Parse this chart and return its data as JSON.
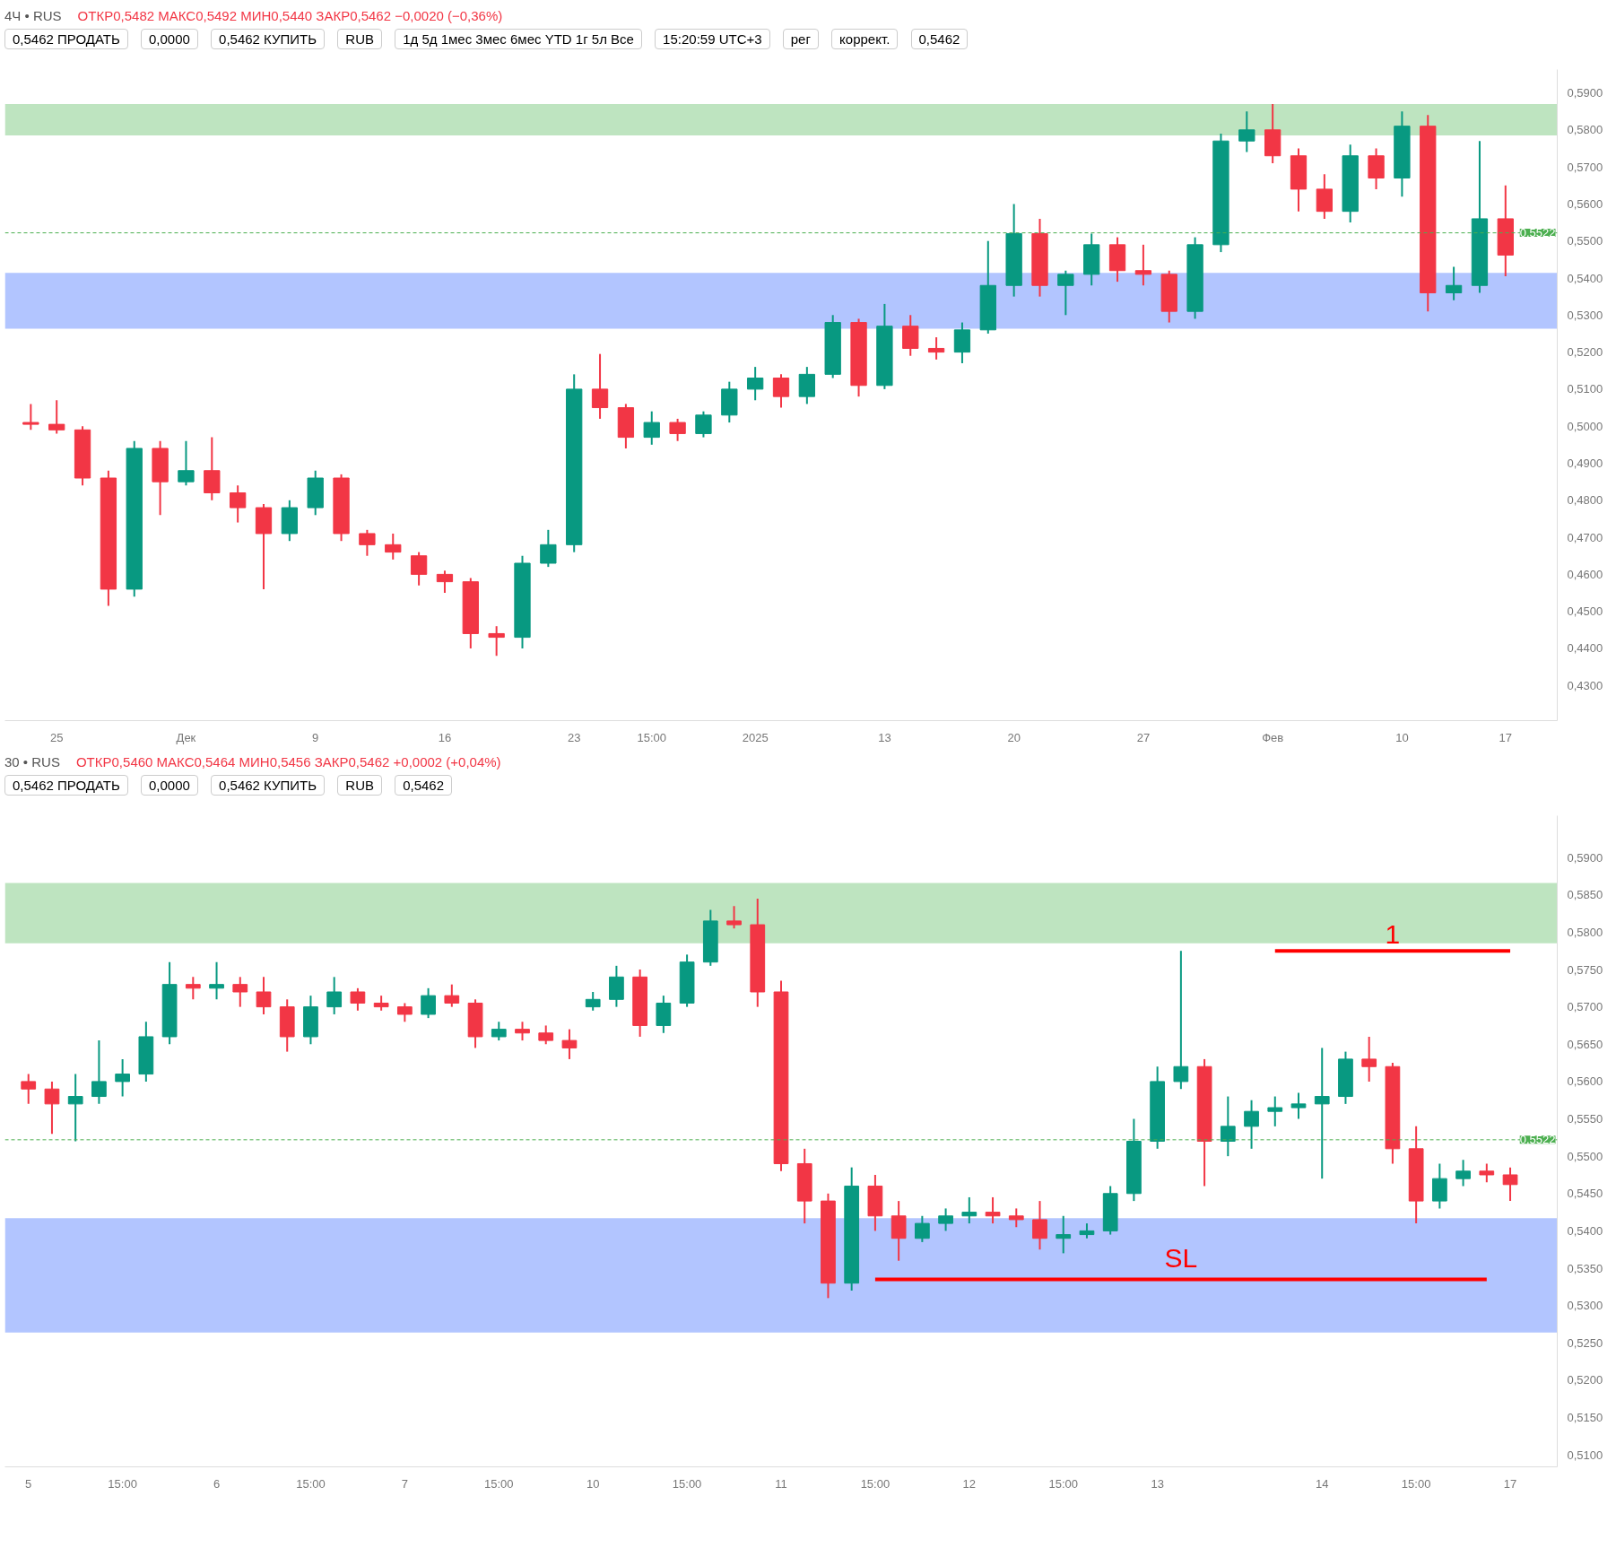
{
  "chart_data": [
    {
      "type": "candlestick",
      "title": "4Ч • RUS",
      "subtitle": "ОТКР0,5482 МАКС0,5492 МИН0,5440 ЗАКР0,5462 −0,0020 (−0,36%)",
      "annotations": [
        "0,5462 ПРОДАТЬ",
        "0,0000",
        "0,5462 КУПИТЬ",
        "RUB",
        "1д 5д 1мес 3мес 6мес YTD 1г 5л Все",
        "15:20:59 UTC+3",
        "рег",
        "коррект.",
        "0,5462"
      ],
      "categories": [
        null,
        "25",
        null,
        null,
        null,
        null,
        "Дек",
        null,
        null,
        null,
        null,
        "9",
        null,
        null,
        null,
        null,
        "16",
        null,
        null,
        null,
        null,
        "23",
        null,
        null,
        "15:00",
        null,
        null,
        null,
        "2025",
        null,
        null,
        null,
        null,
        "13",
        null,
        null,
        null,
        null,
        "20",
        null,
        null,
        null,
        null,
        "27",
        null,
        null,
        null,
        null,
        "Фев",
        null,
        null,
        null,
        null,
        "10",
        null,
        null,
        null,
        "17"
      ],
      "ohlc": [
        [
          0.501,
          0.506,
          0.499,
          0.5005
        ],
        [
          0.5005,
          0.507,
          0.498,
          0.499
        ],
        [
          0.499,
          0.5,
          0.484,
          0.486
        ],
        [
          0.486,
          0.488,
          0.4515,
          0.456
        ],
        [
          0.456,
          0.496,
          0.454,
          0.494
        ],
        [
          0.494,
          0.496,
          0.476,
          0.485
        ],
        [
          0.485,
          0.496,
          0.484,
          0.488
        ],
        [
          0.488,
          0.497,
          0.48,
          0.482
        ],
        [
          0.482,
          0.484,
          0.474,
          0.478
        ],
        [
          0.478,
          0.479,
          0.456,
          0.471
        ],
        [
          0.471,
          0.48,
          0.469,
          0.478
        ],
        [
          0.478,
          0.488,
          0.476,
          0.486
        ],
        [
          0.486,
          0.487,
          0.469,
          0.471
        ],
        [
          0.471,
          0.472,
          0.465,
          0.468
        ],
        [
          0.468,
          0.471,
          0.464,
          0.466
        ],
        [
          0.465,
          0.466,
          0.457,
          0.46
        ],
        [
          0.46,
          0.461,
          0.455,
          0.458
        ],
        [
          0.458,
          0.459,
          0.44,
          0.444
        ],
        [
          0.444,
          0.446,
          0.438,
          0.443
        ],
        [
          0.443,
          0.465,
          0.44,
          0.463
        ],
        [
          0.463,
          0.472,
          0.462,
          0.468
        ],
        [
          0.468,
          0.514,
          0.466,
          0.51
        ],
        [
          0.51,
          0.5195,
          0.502,
          0.505
        ],
        [
          0.505,
          0.506,
          0.494,
          0.497
        ],
        [
          0.497,
          0.504,
          0.495,
          0.501
        ],
        [
          0.501,
          0.502,
          0.496,
          0.498
        ],
        [
          0.498,
          0.504,
          0.497,
          0.503
        ],
        [
          0.503,
          0.512,
          0.501,
          0.51
        ],
        [
          0.51,
          0.516,
          0.507,
          0.513
        ],
        [
          0.513,
          0.514,
          0.505,
          0.508
        ],
        [
          0.508,
          0.516,
          0.506,
          0.514
        ],
        [
          0.514,
          0.53,
          0.513,
          0.528
        ],
        [
          0.528,
          0.529,
          0.508,
          0.511
        ],
        [
          0.511,
          0.533,
          0.51,
          0.527
        ],
        [
          0.527,
          0.53,
          0.519,
          0.521
        ],
        [
          0.521,
          0.524,
          0.518,
          0.52
        ],
        [
          0.52,
          0.528,
          0.517,
          0.526
        ],
        [
          0.526,
          0.55,
          0.525,
          0.538
        ],
        [
          0.538,
          0.56,
          0.535,
          0.552
        ],
        [
          0.552,
          0.556,
          0.535,
          0.538
        ],
        [
          0.538,
          0.542,
          0.53,
          0.541
        ],
        [
          0.541,
          0.552,
          0.538,
          0.549
        ],
        [
          0.549,
          0.551,
          0.539,
          0.542
        ],
        [
          0.542,
          0.549,
          0.538,
          0.541
        ],
        [
          0.541,
          0.542,
          0.528,
          0.531
        ],
        [
          0.531,
          0.551,
          0.529,
          0.549
        ],
        [
          0.549,
          0.579,
          0.547,
          0.577
        ],
        [
          0.577,
          0.585,
          0.574,
          0.58
        ],
        [
          0.58,
          0.587,
          0.571,
          0.573
        ],
        [
          0.573,
          0.575,
          0.558,
          0.564
        ],
        [
          0.564,
          0.568,
          0.556,
          0.558
        ],
        [
          0.558,
          0.576,
          0.555,
          0.573
        ],
        [
          0.573,
          0.575,
          0.564,
          0.567
        ],
        [
          0.567,
          0.585,
          0.562,
          0.581
        ],
        [
          0.581,
          0.584,
          0.531,
          0.536
        ],
        [
          0.536,
          0.543,
          0.534,
          0.538
        ],
        [
          0.538,
          0.577,
          0.536,
          0.556
        ],
        [
          0.556,
          0.565,
          0.5405,
          0.5462
        ]
      ],
      "colors": [
        "#f23645",
        "#f23645",
        "#f23645",
        "#f23645",
        "#089981",
        "#f23645",
        "#089981",
        "#f23645",
        "#f23645",
        "#f23645",
        "#089981",
        "#089981",
        "#f23645",
        "#f23645",
        "#f23645",
        "#f23645",
        "#f23645",
        "#f23645",
        "#f23645",
        "#089981",
        "#089981",
        "#089981",
        "#f23645",
        "#f23645",
        "#089981",
        "#f23645",
        "#089981",
        "#089981",
        "#089981",
        "#f23645",
        "#089981",
        "#089981",
        "#f23645",
        "#089981",
        "#f23645",
        "#f23645",
        "#089981",
        "#089981",
        "#089981",
        "#f23645",
        "#089981",
        "#089981",
        "#f23645",
        "#f23645",
        "#f23645",
        "#089981",
        "#089981",
        "#089981",
        "#f23645",
        "#f23645",
        "#f23645",
        "#089981",
        "#f23645",
        "#089981",
        "#f23645",
        "#089981",
        "#089981",
        "#f23645"
      ],
      "ylim": [
        0.4205,
        0.5963
      ],
      "yticks": [
        {
          "value": 0.43,
          "label": "0,4300"
        },
        {
          "value": 0.44,
          "label": "0,4400"
        },
        {
          "value": 0.45,
          "label": "0,4500"
        },
        {
          "value": 0.46,
          "label": "0,4600"
        },
        {
          "value": 0.47,
          "label": "0,4700"
        },
        {
          "value": 0.48,
          "label": "0,4800"
        },
        {
          "value": 0.49,
          "label": "0,4900"
        },
        {
          "value": 0.5,
          "label": "0,5000"
        },
        {
          "value": 0.51,
          "label": "0,5100"
        },
        {
          "value": 0.52,
          "label": "0,5200"
        },
        {
          "value": 0.53,
          "label": "0,5300"
        },
        {
          "value": 0.54,
          "label": "0,5400"
        },
        {
          "value": 0.55,
          "label": "0,5500"
        },
        {
          "value": 0.56,
          "label": "0,5600"
        },
        {
          "value": 0.57,
          "label": "0,5700"
        },
        {
          "value": 0.58,
          "label": "0,5800"
        },
        {
          "value": 0.59,
          "label": "0,5900"
        }
      ],
      "bands": [
        {
          "axis": "y",
          "from": 0.5785,
          "to": 0.587,
          "color": "#b7e1b9"
        },
        {
          "axis": "y",
          "from": 0.5263,
          "to": 0.5414,
          "color": "#aabfff"
        }
      ],
      "ref_lines": [
        {
          "axis": "y",
          "value": 0.5522,
          "label": "0,5522",
          "color": "#4caf50",
          "line_style": "dashed"
        }
      ],
      "grid": false
    },
    {
      "type": "candlestick",
      "title": "30 • RUS",
      "subtitle": "ОТКР0,5460 МАКС0,5464 МИН0,5456 ЗАКР0,5462 +0,0002 (+0,04%)",
      "annotations": [
        "0,5462 ПРОДАТЬ",
        "0,0000",
        "0,5462 КУПИТЬ",
        "RUB",
        "0,5462"
      ],
      "categories": [
        "5",
        null,
        null,
        null,
        "15:00",
        null,
        null,
        null,
        "6",
        null,
        null,
        null,
        "15:00",
        null,
        null,
        null,
        "7",
        null,
        null,
        null,
        "15:00",
        null,
        null,
        null,
        "10",
        null,
        null,
        null,
        "15:00",
        null,
        null,
        null,
        "11",
        null,
        null,
        null,
        "15:00",
        null,
        null,
        null,
        "12",
        null,
        null,
        null,
        "15:00",
        null,
        null,
        null,
        "13",
        null,
        null,
        null,
        null,
        null,
        null,
        "14",
        null,
        null,
        null,
        "15:00",
        null,
        null,
        null,
        "17"
      ],
      "ohlc": [
        [
          0.56,
          0.561,
          0.557,
          0.559
        ],
        [
          0.559,
          0.56,
          0.553,
          0.557
        ],
        [
          0.557,
          0.561,
          0.552,
          0.558
        ],
        [
          0.558,
          0.5655,
          0.557,
          0.56
        ],
        [
          0.56,
          0.563,
          0.558,
          0.561
        ],
        [
          0.561,
          0.568,
          0.56,
          0.566
        ],
        [
          0.566,
          0.576,
          0.565,
          0.573
        ],
        [
          0.573,
          0.574,
          0.571,
          0.5725
        ],
        [
          0.5725,
          0.576,
          0.571,
          0.573
        ],
        [
          0.573,
          0.574,
          0.57,
          0.572
        ],
        [
          0.572,
          0.574,
          0.569,
          0.57
        ],
        [
          0.57,
          0.571,
          0.564,
          0.566
        ],
        [
          0.566,
          0.5715,
          0.565,
          0.57
        ],
        [
          0.57,
          0.574,
          0.569,
          0.572
        ],
        [
          0.572,
          0.5725,
          0.5695,
          0.5705
        ],
        [
          0.5705,
          0.5715,
          0.5695,
          0.57
        ],
        [
          0.57,
          0.5705,
          0.568,
          0.569
        ],
        [
          0.569,
          0.5725,
          0.5685,
          0.5715
        ],
        [
          0.5715,
          0.573,
          0.57,
          0.5705
        ],
        [
          0.5705,
          0.571,
          0.5645,
          0.566
        ],
        [
          0.566,
          0.568,
          0.5655,
          0.567
        ],
        [
          0.567,
          0.568,
          0.5655,
          0.5665
        ],
        [
          0.5665,
          0.5675,
          0.565,
          0.5655
        ],
        [
          0.5655,
          0.567,
          0.563,
          0.5645
        ],
        [
          0.57,
          0.572,
          0.5695,
          0.571
        ],
        [
          0.571,
          0.5755,
          0.57,
          0.574
        ],
        [
          0.574,
          0.575,
          0.566,
          0.5675
        ],
        [
          0.5675,
          0.5715,
          0.5665,
          0.5705
        ],
        [
          0.5705,
          0.577,
          0.57,
          0.576
        ],
        [
          0.576,
          0.583,
          0.5755,
          0.5815
        ],
        [
          0.5815,
          0.5835,
          0.5805,
          0.581
        ],
        [
          0.581,
          0.5845,
          0.57,
          0.572
        ],
        [
          0.572,
          0.5735,
          0.548,
          0.549
        ],
        [
          0.549,
          0.551,
          0.541,
          0.544
        ],
        [
          0.544,
          0.545,
          0.531,
          0.533
        ],
        [
          0.533,
          0.5485,
          0.532,
          0.546
        ],
        [
          0.546,
          0.5475,
          0.54,
          0.542
        ],
        [
          0.542,
          0.544,
          0.536,
          0.539
        ],
        [
          0.539,
          0.542,
          0.5385,
          0.541
        ],
        [
          0.541,
          0.543,
          0.54,
          0.542
        ],
        [
          0.542,
          0.5445,
          0.541,
          0.5425
        ],
        [
          0.5425,
          0.5445,
          0.541,
          0.542
        ],
        [
          0.542,
          0.543,
          0.5405,
          0.5415
        ],
        [
          0.5415,
          0.544,
          0.5375,
          0.539
        ],
        [
          0.539,
          0.542,
          0.537,
          0.5395
        ],
        [
          0.5395,
          0.541,
          0.539,
          0.54
        ],
        [
          0.54,
          0.546,
          0.5395,
          0.545
        ],
        [
          0.545,
          0.555,
          0.544,
          0.552
        ],
        [
          0.552,
          0.562,
          0.551,
          0.56
        ],
        [
          0.56,
          0.5775,
          0.559,
          0.562
        ],
        [
          0.562,
          0.563,
          0.546,
          0.552
        ],
        [
          0.552,
          0.558,
          0.55,
          0.554
        ],
        [
          0.554,
          0.5575,
          0.551,
          0.556
        ],
        [
          0.556,
          0.558,
          0.554,
          0.5565
        ],
        [
          0.5565,
          0.5585,
          0.555,
          0.557
        ],
        [
          0.557,
          0.5645,
          0.547,
          0.558
        ],
        [
          0.558,
          0.564,
          0.557,
          0.563
        ],
        [
          0.563,
          0.566,
          0.56,
          0.562
        ],
        [
          0.562,
          0.5625,
          0.549,
          0.551
        ],
        [
          0.551,
          0.554,
          0.541,
          0.544
        ],
        [
          0.544,
          0.549,
          0.543,
          0.547
        ],
        [
          0.547,
          0.5495,
          0.546,
          0.548
        ],
        [
          0.548,
          0.549,
          0.5465,
          0.5475
        ],
        [
          0.5475,
          0.5485,
          0.544,
          0.5462
        ]
      ],
      "colors": [
        "#f23645",
        "#f23645",
        "#089981",
        "#089981",
        "#089981",
        "#089981",
        "#089981",
        "#f23645",
        "#089981",
        "#f23645",
        "#f23645",
        "#f23645",
        "#089981",
        "#089981",
        "#f23645",
        "#f23645",
        "#f23645",
        "#089981",
        "#f23645",
        "#f23645",
        "#089981",
        "#f23645",
        "#f23645",
        "#f23645",
        "#089981",
        "#089981",
        "#f23645",
        "#089981",
        "#089981",
        "#089981",
        "#f23645",
        "#f23645",
        "#f23645",
        "#f23645",
        "#f23645",
        "#089981",
        "#f23645",
        "#f23645",
        "#089981",
        "#089981",
        "#089981",
        "#f23645",
        "#f23645",
        "#f23645",
        "#089981",
        "#089981",
        "#089981",
        "#089981",
        "#089981",
        "#089981",
        "#f23645",
        "#089981",
        "#089981",
        "#089981",
        "#089981",
        "#089981",
        "#089981",
        "#f23645",
        "#f23645",
        "#f23645",
        "#089981",
        "#089981",
        "#f23645",
        "#f23645"
      ],
      "series": [
        {
          "type": "line",
          "name": "1",
          "color": "#ff0000",
          "values": [
            null,
            null,
            null,
            null,
            null,
            null,
            null,
            null,
            null,
            null,
            null,
            null,
            null,
            null,
            null,
            null,
            null,
            null,
            null,
            null,
            null,
            null,
            null,
            null,
            null,
            null,
            null,
            null,
            null,
            null,
            null,
            null,
            null,
            null,
            null,
            null,
            null,
            null,
            null,
            null,
            null,
            null,
            null,
            null,
            null,
            null,
            null,
            null,
            null,
            null,
            null,
            null,
            null,
            0.5775,
            0.5775,
            0.5775,
            0.5775,
            0.5775,
            0.5775,
            0.5775,
            0.5775,
            0.5775,
            0.5775,
            0.5775
          ]
        },
        {
          "type": "line",
          "name": "SL",
          "color": "#ff0000",
          "values": [
            null,
            null,
            null,
            null,
            null,
            null,
            null,
            null,
            null,
            null,
            null,
            null,
            null,
            null,
            null,
            null,
            null,
            null,
            null,
            null,
            null,
            null,
            null,
            null,
            null,
            null,
            null,
            null,
            null,
            null,
            null,
            null,
            null,
            null,
            null,
            null,
            0.5335,
            0.5335,
            0.5335,
            0.5335,
            0.5335,
            0.5335,
            0.5335,
            0.5335,
            0.5335,
            0.5335,
            0.5335,
            0.5335,
            0.5335,
            0.5335,
            0.5335,
            0.5335,
            0.5335,
            0.5335,
            0.5335,
            0.5335,
            0.5335,
            0.5335,
            0.5335,
            0.5335,
            0.5335,
            0.5335,
            0.5335,
            null
          ]
        }
      ],
      "ylim": [
        0.5084,
        0.5956
      ],
      "yticks": [
        {
          "value": 0.51,
          "label": "0,5100"
        },
        {
          "value": 0.515,
          "label": "0,5150"
        },
        {
          "value": 0.52,
          "label": "0,5200"
        },
        {
          "value": 0.525,
          "label": "0,5250"
        },
        {
          "value": 0.53,
          "label": "0,5300"
        },
        {
          "value": 0.535,
          "label": "0,5350"
        },
        {
          "value": 0.54,
          "label": "0,5400"
        },
        {
          "value": 0.545,
          "label": "0,5450"
        },
        {
          "value": 0.55,
          "label": "0,5500"
        },
        {
          "value": 0.555,
          "label": "0,5550"
        },
        {
          "value": 0.56,
          "label": "0,5600"
        },
        {
          "value": 0.565,
          "label": "0,5650"
        },
        {
          "value": 0.57,
          "label": "0,5700"
        },
        {
          "value": 0.575,
          "label": "0,5750"
        },
        {
          "value": 0.58,
          "label": "0,5800"
        },
        {
          "value": 0.585,
          "label": "0,5850"
        },
        {
          "value": 0.59,
          "label": "0,5900"
        }
      ],
      "bands": [
        {
          "axis": "y",
          "from": 0.5785,
          "to": 0.5866,
          "color": "#b7e1b9"
        },
        {
          "axis": "y",
          "from": 0.5264,
          "to": 0.5417,
          "color": "#aabfff"
        }
      ],
      "ref_lines": [
        {
          "axis": "y",
          "value": 0.5522,
          "label": "0,5522",
          "color": "#4caf50",
          "line_style": "dashed"
        }
      ],
      "grid": false
    }
  ]
}
